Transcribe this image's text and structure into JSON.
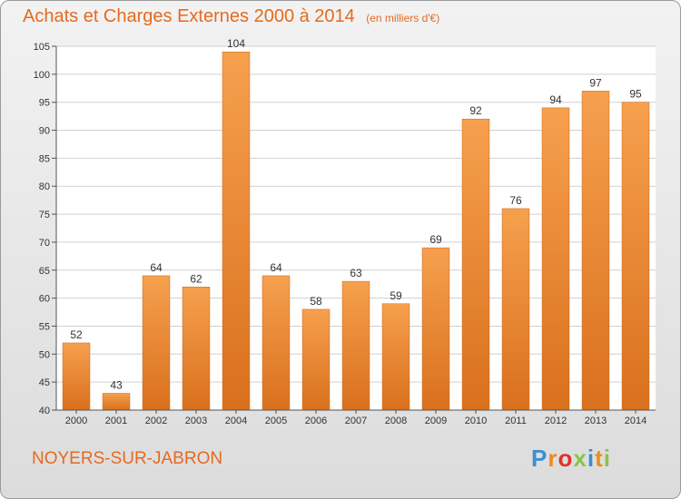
{
  "chart_data": {
    "type": "bar",
    "title": "Achats et Charges Externes 2000 à 2014",
    "subtitle": "(en milliers d'€)",
    "categories": [
      "2000",
      "2001",
      "2002",
      "2003",
      "2004",
      "2005",
      "2006",
      "2007",
      "2008",
      "2009",
      "2010",
      "2011",
      "2012",
      "2013",
      "2014"
    ],
    "values": [
      52,
      43,
      64,
      62,
      104,
      64,
      58,
      63,
      59,
      69,
      92,
      76,
      94,
      97,
      95
    ],
    "ylim": [
      40,
      105
    ],
    "yticks": [
      40,
      45,
      50,
      55,
      60,
      65,
      70,
      75,
      80,
      85,
      90,
      95,
      100,
      105
    ],
    "grid": true,
    "bar_color": "#f0923a"
  },
  "commune": "NOYERS-SUR-JABRON",
  "logo": {
    "letters": [
      "P",
      "r",
      "o",
      "x",
      "i",
      "t",
      "i"
    ],
    "colors": [
      "#3a8fd0",
      "#f08a1e",
      "#e0332a",
      "#8bc34a",
      "#3a8fd0",
      "#f08a1e",
      "#8bc34a"
    ]
  }
}
